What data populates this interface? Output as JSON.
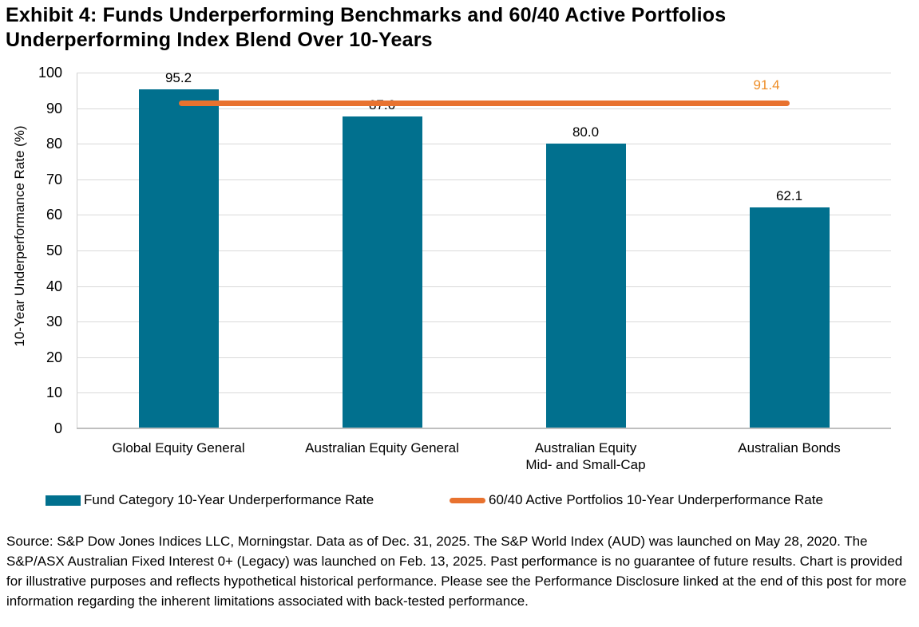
{
  "title": "Exhibit 4: Funds Underperforming Benchmarks and 60/40 Active Portfolios Underperforming Index Blend Over 10-Years",
  "chart_data": {
    "type": "bar",
    "title": "Exhibit 4: Funds Underperforming Benchmarks and 60/40 Active Portfolios Underperforming Index Blend Over 10-Years",
    "categories": [
      "Global Equity General",
      "Australian Equity General",
      "Australian Equity Mid- and Small-Cap",
      "Australian Bonds"
    ],
    "categories_lines": [
      [
        "Global Equity General"
      ],
      [
        "Australian Equity General"
      ],
      [
        "Australian Equity",
        "Mid- and Small-Cap"
      ],
      [
        "Australian Bonds"
      ]
    ],
    "series": [
      {
        "name": "Fund Category 10-Year Underperformance Rate",
        "type": "bar",
        "values": [
          95.2,
          87.6,
          80.0,
          62.1
        ],
        "labels": [
          "95.2",
          "87.6",
          "80.0",
          "62.1"
        ],
        "color": "#01708E"
      },
      {
        "name": "60/40 Active Portfolios 10-Year Underperformance Rate",
        "type": "constant-line",
        "value": 91.4,
        "label": "91.4",
        "color": "#E8722F",
        "label_color": "#EE8E28"
      }
    ],
    "xlabel": "",
    "ylabel": "10-Year Underperformance Rate (%)",
    "ylim": [
      0,
      100
    ],
    "ytick_step": 10,
    "grid": true,
    "legend_position": "bottom"
  },
  "colors": {
    "bar_teal": "#01708E",
    "line_orange": "#E8722F",
    "line_label_orange": "#EE8E28",
    "gridline": "#D9D9D9",
    "axis": "#BFBFBF"
  },
  "source_note": "Source: S&P Dow Jones Indices LLC, Morningstar. Data as of Dec. 31, 2025. The S&P World Index (AUD) was launched on May 28, 2020. The S&P/ASX Australian Fixed Interest 0+ (Legacy) was launched on Feb. 13, 2025. Past performance is no guarantee of future results. Chart is provided for illustrative purposes and reflects hypothetical historical performance. Please see the Performance Disclosure linked at the end of this post for more information regarding the inherent limitations associated with back-tested performance."
}
